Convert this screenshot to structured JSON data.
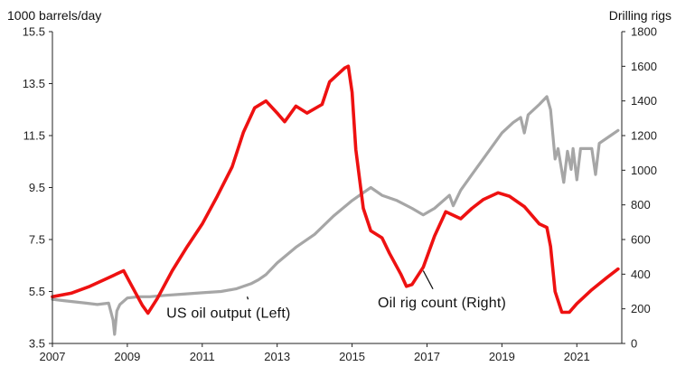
{
  "chart_data": {
    "type": "line",
    "y_left_unit": "1000 barrels/day",
    "y_right_unit": "Drilling rigs",
    "x_ticks": [
      "2007",
      "2009",
      "2011",
      "2013",
      "2015",
      "2017",
      "2019",
      "2021"
    ],
    "y_left_ticks": [
      "3.5",
      "5.5",
      "7.5",
      "9.5",
      "11.5",
      "13.5",
      "15.5"
    ],
    "y_right_ticks": [
      "0",
      "200",
      "400",
      "600",
      "800",
      "1000",
      "1200",
      "1400",
      "1600",
      "1800"
    ],
    "xlim": [
      2007,
      2022.2
    ],
    "ylim_left": [
      3.5,
      15.5
    ],
    "ylim_right": [
      0,
      1800
    ],
    "grid": false,
    "annotations": [
      {
        "text": "US oil output (Left)",
        "x": 2011.7,
        "y_left": 4.5,
        "pointer_to": [
          2012.2,
          5.3
        ]
      },
      {
        "text": "Oil rig count (Right)",
        "x": 2017.4,
        "y_left": 4.9,
        "pointer_to": [
          2016.9,
          6.3
        ]
      }
    ],
    "series": [
      {
        "name": "US oil output (Left)",
        "axis": "left",
        "color": "#a6a6a6",
        "points": [
          [
            2007.0,
            5.2
          ],
          [
            2007.3,
            5.15
          ],
          [
            2007.6,
            5.1
          ],
          [
            2007.9,
            5.05
          ],
          [
            2008.2,
            5.0
          ],
          [
            2008.5,
            5.05
          ],
          [
            2008.62,
            4.4
          ],
          [
            2008.66,
            3.85
          ],
          [
            2008.72,
            4.75
          ],
          [
            2008.8,
            5.0
          ],
          [
            2009.0,
            5.25
          ],
          [
            2009.3,
            5.3
          ],
          [
            2009.6,
            5.3
          ],
          [
            2010.0,
            5.35
          ],
          [
            2010.5,
            5.4
          ],
          [
            2011.0,
            5.45
          ],
          [
            2011.5,
            5.5
          ],
          [
            2011.9,
            5.6
          ],
          [
            2012.3,
            5.8
          ],
          [
            2012.5,
            5.95
          ],
          [
            2012.7,
            6.15
          ],
          [
            2013.0,
            6.6
          ],
          [
            2013.5,
            7.2
          ],
          [
            2014.0,
            7.7
          ],
          [
            2014.5,
            8.4
          ],
          [
            2015.0,
            9.0
          ],
          [
            2015.3,
            9.3
          ],
          [
            2015.5,
            9.5
          ],
          [
            2015.8,
            9.2
          ],
          [
            2016.2,
            9.0
          ],
          [
            2016.6,
            8.7
          ],
          [
            2016.9,
            8.45
          ],
          [
            2017.2,
            8.7
          ],
          [
            2017.6,
            9.2
          ],
          [
            2017.7,
            8.8
          ],
          [
            2017.9,
            9.4
          ],
          [
            2018.2,
            10.0
          ],
          [
            2018.6,
            10.8
          ],
          [
            2019.0,
            11.6
          ],
          [
            2019.3,
            12.0
          ],
          [
            2019.5,
            12.2
          ],
          [
            2019.6,
            11.6
          ],
          [
            2019.7,
            12.3
          ],
          [
            2020.0,
            12.7
          ],
          [
            2020.2,
            13.0
          ],
          [
            2020.3,
            12.5
          ],
          [
            2020.42,
            10.6
          ],
          [
            2020.5,
            11.0
          ],
          [
            2020.65,
            9.7
          ],
          [
            2020.75,
            10.9
          ],
          [
            2020.85,
            10.2
          ],
          [
            2020.9,
            11.0
          ],
          [
            2021.0,
            9.8
          ],
          [
            2021.1,
            11.0
          ],
          [
            2021.4,
            11.0
          ],
          [
            2021.5,
            10.0
          ],
          [
            2021.6,
            11.2
          ],
          [
            2021.9,
            11.5
          ],
          [
            2022.1,
            11.7
          ]
        ]
      },
      {
        "name": "Oil rig count (Right)",
        "axis": "right",
        "color": "#ee1111",
        "points": [
          [
            2007.0,
            270
          ],
          [
            2007.5,
            290
          ],
          [
            2008.0,
            330
          ],
          [
            2008.5,
            380
          ],
          [
            2008.9,
            420
          ],
          [
            2009.1,
            340
          ],
          [
            2009.4,
            220
          ],
          [
            2009.55,
            175
          ],
          [
            2009.8,
            260
          ],
          [
            2010.2,
            420
          ],
          [
            2010.6,
            560
          ],
          [
            2011.0,
            690
          ],
          [
            2011.4,
            850
          ],
          [
            2011.8,
            1020
          ],
          [
            2012.1,
            1220
          ],
          [
            2012.4,
            1360
          ],
          [
            2012.7,
            1400
          ],
          [
            2013.0,
            1330
          ],
          [
            2013.2,
            1280
          ],
          [
            2013.5,
            1370
          ],
          [
            2013.8,
            1330
          ],
          [
            2014.2,
            1380
          ],
          [
            2014.4,
            1510
          ],
          [
            2014.8,
            1590
          ],
          [
            2014.9,
            1600
          ],
          [
            2015.0,
            1450
          ],
          [
            2015.1,
            1120
          ],
          [
            2015.3,
            780
          ],
          [
            2015.5,
            650
          ],
          [
            2015.8,
            610
          ],
          [
            2016.0,
            520
          ],
          [
            2016.3,
            400
          ],
          [
            2016.45,
            330
          ],
          [
            2016.6,
            340
          ],
          [
            2016.9,
            440
          ],
          [
            2017.2,
            620
          ],
          [
            2017.5,
            760
          ],
          [
            2017.9,
            720
          ],
          [
            2018.2,
            780
          ],
          [
            2018.5,
            830
          ],
          [
            2018.9,
            870
          ],
          [
            2019.2,
            850
          ],
          [
            2019.6,
            790
          ],
          [
            2020.0,
            690
          ],
          [
            2020.2,
            670
          ],
          [
            2020.3,
            560
          ],
          [
            2020.42,
            300
          ],
          [
            2020.6,
            180
          ],
          [
            2020.8,
            180
          ],
          [
            2021.0,
            230
          ],
          [
            2021.4,
            310
          ],
          [
            2021.8,
            380
          ],
          [
            2022.1,
            430
          ]
        ]
      }
    ]
  }
}
